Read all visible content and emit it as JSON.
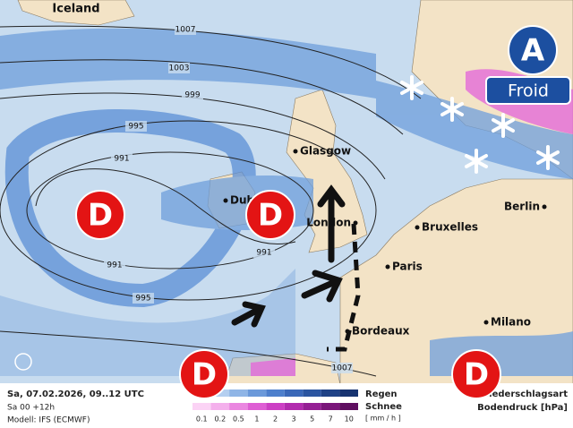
{
  "map": {
    "labels": [
      "Iceland"
    ],
    "isobar_labels": [
      1007,
      1003,
      999,
      995,
      991,
      991,
      991,
      995,
      1007
    ],
    "cities": [
      "Glasgow",
      "Dublin",
      "London",
      "Bruxelles",
      "Paris",
      "Bordeaux",
      "Berlin",
      "Milano"
    ],
    "lows": [
      "D",
      "D",
      "D",
      "D"
    ],
    "high": {
      "label": "A",
      "note": "Froid"
    }
  },
  "footer": {
    "date": "Sa, 07.02.2026, 09..12 UTC",
    "run": "Sa 00 +12h",
    "model": "Modell: IFS (ECMWF)",
    "legend": {
      "rain": "Regen",
      "snow": "Schnee",
      "unit": "[ mm / h ]",
      "scale": [
        0.1,
        0.2,
        0.5,
        1,
        2,
        3,
        5,
        7,
        10
      ]
    },
    "type_label": "Niederschlagsart",
    "pressure_label": "Bodendruck [hPa]"
  }
}
